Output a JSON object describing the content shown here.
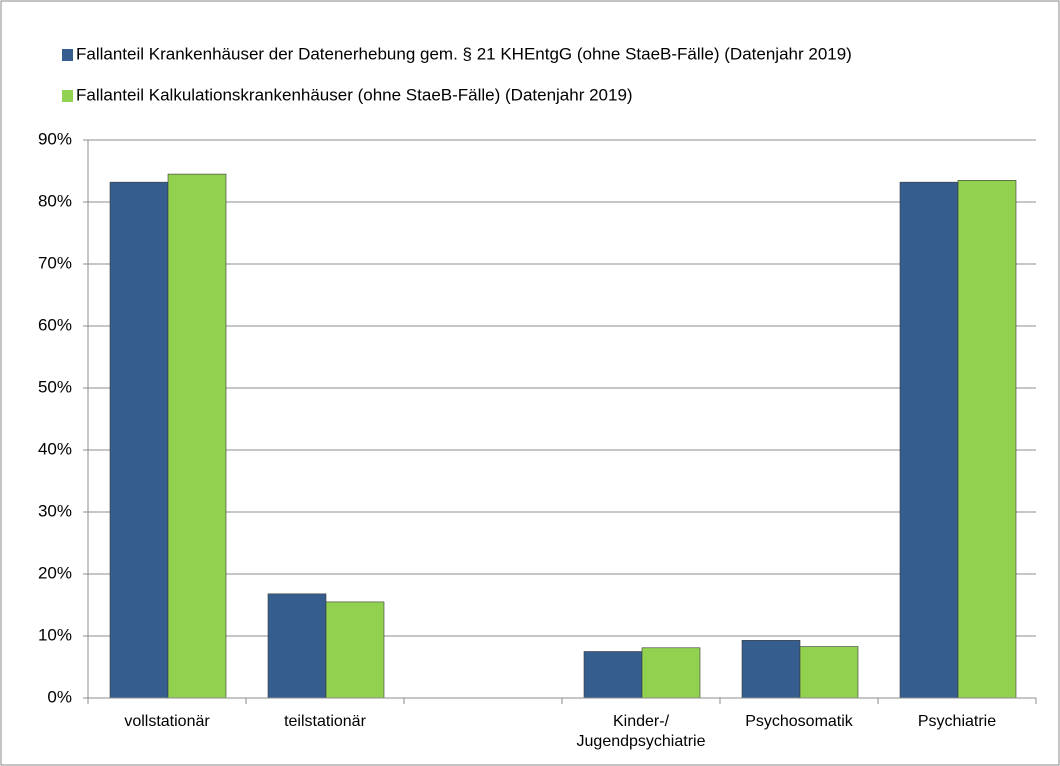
{
  "chart_data": {
    "type": "bar",
    "categories": [
      "vollstationär",
      "teilstationär",
      null,
      "Kinder-/\nJugendpsychiatrie",
      "Psychosomatik",
      "Psychiatrie"
    ],
    "series": [
      {
        "name": "Fallanteil Krankenhäuser der Datenerhebung gem. § 21 KHEntgG (ohne StaeB-Fälle) (Datenjahr 2019)",
        "color": "#355e8f",
        "values": [
          83.2,
          16.8,
          null,
          7.5,
          9.3,
          83.2
        ]
      },
      {
        "name": "Fallanteil Kalkulationskrankenhäuser (ohne StaeB-Fälle) (Datenjahr 2019)",
        "color": "#92d050",
        "values": [
          84.5,
          15.5,
          null,
          8.1,
          8.3,
          83.5
        ]
      }
    ],
    "ylim": [
      0,
      90
    ],
    "yticks": [
      {
        "value": 0,
        "label": "0%"
      },
      {
        "value": 10,
        "label": "10%"
      },
      {
        "value": 20,
        "label": "20%"
      },
      {
        "value": 30,
        "label": "30%"
      },
      {
        "value": 40,
        "label": "40%"
      },
      {
        "value": 50,
        "label": "50%"
      },
      {
        "value": 60,
        "label": "60%"
      },
      {
        "value": 70,
        "label": "70%"
      },
      {
        "value": 80,
        "label": "80%"
      },
      {
        "value": 90,
        "label": "90%"
      }
    ],
    "grid": true,
    "legend": "top"
  }
}
